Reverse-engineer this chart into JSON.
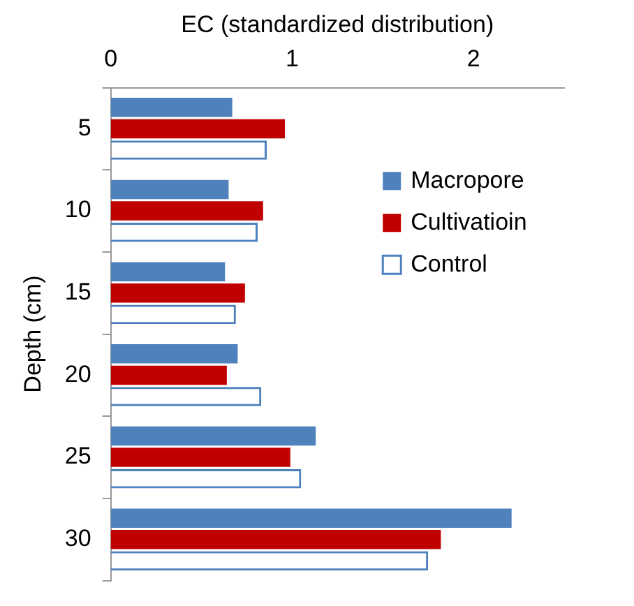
{
  "chart_data": {
    "type": "bar",
    "orientation": "horizontal",
    "xlabel": "EC (standardized distribution)",
    "ylabel": "Depth (cm)",
    "categories": [
      "5",
      "10",
      "15",
      "20",
      "25",
      "30"
    ],
    "xlim": [
      0,
      2.5
    ],
    "xticks": [
      0,
      1,
      2
    ],
    "grid": false,
    "legend": "right",
    "series": [
      {
        "name": "Macropore",
        "color": "#4f81bd",
        "values": [
          0.67,
          0.65,
          0.63,
          0.7,
          1.13,
          2.21
        ]
      },
      {
        "name": "Cultivatioin",
        "color": "#c00000",
        "values": [
          0.96,
          0.84,
          0.74,
          0.64,
          0.99,
          1.82
        ]
      },
      {
        "name": "Control",
        "color": "#4f81bd",
        "values": [
          0.86,
          0.81,
          0.69,
          0.83,
          1.05,
          1.75
        ]
      }
    ]
  }
}
